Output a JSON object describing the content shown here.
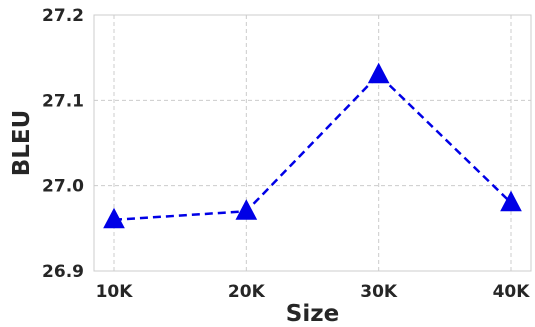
{
  "chart_data": {
    "type": "line",
    "title": "",
    "xlabel": "Size",
    "ylabel": "BLEU",
    "categories": [
      "10K",
      "20K",
      "30K",
      "40K"
    ],
    "series": [
      {
        "values": [
          26.96,
          26.97,
          27.13,
          26.98
        ]
      }
    ],
    "ylim": [
      26.9,
      27.2
    ],
    "yticks": [
      "26.9",
      "27.0",
      "27.1",
      "27.2"
    ],
    "grid": true,
    "line_style": "dashed",
    "marker": "triangle",
    "color": "#0000e6"
  }
}
